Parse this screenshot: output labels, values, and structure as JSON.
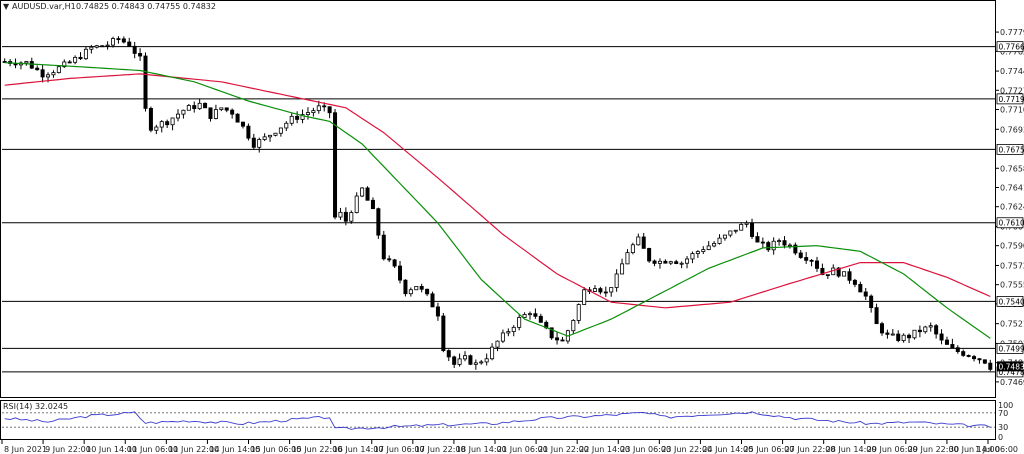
{
  "header": {
    "symbol": "AUDUSD.var,H1",
    "ohlc": "0.74825 0.74843 0.74755 0.74832"
  },
  "rsi_header": {
    "label": "RSI(14)",
    "value": "32.0245"
  },
  "chart_data": [
    {
      "type": "candlestick",
      "ylim": [
        0.7457,
        0.7795
      ],
      "y_ticks": [
        "0.77790",
        "0.77620",
        "0.77445",
        "0.77275",
        "0.77105",
        "0.76930",
        "0.76585",
        "0.76415",
        "0.76245",
        "0.76070",
        "0.75900",
        "0.75725",
        "0.75555",
        "0.75385",
        "0.75210",
        "0.75035",
        "0.74865",
        "0.74695"
      ],
      "x_ticks": [
        "8 Jun 2021",
        "9 Jun 22:00",
        "10 Jun 14:00",
        "11 Jun 06:00",
        "11 Jun 22:00",
        "14 Jun 14:00",
        "15 Jun 06:00",
        "15 Jun 22:00",
        "16 Jun 14:00",
        "17 Jun 06:00",
        "17 Jun 22:00",
        "18 Jun 14:00",
        "21 Jun 06:00",
        "21 Jun 22:00",
        "22 Jun 14:00",
        "23 Jun 06:00",
        "23 Jun 22:00",
        "24 Jun 14:00",
        "25 Jun 06:00",
        "27 Jun 22:00",
        "28 Jun 14:00",
        "29 Jun 06:00",
        "29 Jun 22:00",
        "30 Jun 14:00",
        "1 Jul 06:00"
      ],
      "horizontal_levels": [
        "0.77661",
        "0.77199",
        "0.76752",
        "0.76103",
        "0.75407",
        "0.74991",
        "0.74783"
      ],
      "last_price": "0.74832",
      "close_path": [
        [
          0,
          0.7753
        ],
        [
          4,
          0.7752
        ],
        [
          7,
          0.7742
        ],
        [
          9,
          0.7745
        ],
        [
          12,
          0.7752
        ],
        [
          14,
          0.7758
        ],
        [
          16,
          0.7765
        ],
        [
          19,
          0.7768
        ],
        [
          21,
          0.7773
        ],
        [
          23,
          0.7768
        ],
        [
          25,
          0.7755
        ],
        [
          26,
          0.771
        ],
        [
          27,
          0.7695
        ],
        [
          30,
          0.77
        ],
        [
          33,
          0.771
        ],
        [
          36,
          0.7715
        ],
        [
          38,
          0.7705
        ],
        [
          40,
          0.7712
        ],
        [
          42,
          0.7708
        ],
        [
          44,
          0.7695
        ],
        [
          46,
          0.768
        ],
        [
          48,
          0.7685
        ],
        [
          50,
          0.7692
        ],
        [
          53,
          0.7702
        ],
        [
          56,
          0.7708
        ],
        [
          58,
          0.7712
        ],
        [
          60,
          0.7708
        ],
        [
          61,
          0.7615
        ],
        [
          62,
          0.7618
        ],
        [
          63,
          0.7612
        ],
        [
          64,
          0.7622
        ],
        [
          66,
          0.764
        ],
        [
          68,
          0.762
        ],
        [
          70,
          0.758
        ],
        [
          72,
          0.757
        ],
        [
          74,
          0.755
        ],
        [
          76,
          0.7555
        ],
        [
          78,
          0.7545
        ],
        [
          80,
          0.753
        ],
        [
          81,
          0.75
        ],
        [
          83,
          0.7485
        ],
        [
          85,
          0.749
        ],
        [
          87,
          0.7485
        ],
        [
          89,
          0.7492
        ],
        [
          91,
          0.7505
        ],
        [
          93,
          0.7515
        ],
        [
          95,
          0.7525
        ],
        [
          97,
          0.7532
        ],
        [
          99,
          0.752
        ],
        [
          101,
          0.751
        ],
        [
          103,
          0.7505
        ],
        [
          105,
          0.7525
        ],
        [
          107,
          0.755
        ],
        [
          109,
          0.7555
        ],
        [
          111,
          0.7548
        ],
        [
          113,
          0.7562
        ],
        [
          115,
          0.7585
        ],
        [
          117,
          0.7595
        ],
        [
          119,
          0.7578
        ],
        [
          121,
          0.7576
        ],
        [
          123,
          0.7578
        ],
        [
          125,
          0.7575
        ],
        [
          127,
          0.7582
        ],
        [
          129,
          0.7588
        ],
        [
          131,
          0.7592
        ],
        [
          133,
          0.7598
        ],
        [
          135,
          0.7605
        ],
        [
          137,
          0.761
        ],
        [
          139,
          0.7592
        ],
        [
          141,
          0.7588
        ],
        [
          143,
          0.7595
        ],
        [
          145,
          0.759
        ],
        [
          147,
          0.7582
        ],
        [
          149,
          0.7578
        ],
        [
          151,
          0.7565
        ],
        [
          153,
          0.7568
        ],
        [
          155,
          0.7564
        ],
        [
          157,
          0.7558
        ],
        [
          159,
          0.7545
        ],
        [
          161,
          0.752
        ],
        [
          163,
          0.751
        ],
        [
          165,
          0.7508
        ],
        [
          167,
          0.751
        ],
        [
          169,
          0.7515
        ],
        [
          171,
          0.7518
        ],
        [
          173,
          0.7505
        ],
        [
          175,
          0.7498
        ],
        [
          177,
          0.7495
        ],
        [
          179,
          0.7492
        ],
        [
          181,
          0.7488
        ],
        [
          182,
          0.7483
        ]
      ],
      "ma_fast": [
        [
          0,
          0.7752
        ],
        [
          15,
          0.7748
        ],
        [
          25,
          0.7745
        ],
        [
          35,
          0.7735
        ],
        [
          45,
          0.7718
        ],
        [
          55,
          0.7705
        ],
        [
          60,
          0.77
        ],
        [
          66,
          0.768
        ],
        [
          72,
          0.765
        ],
        [
          80,
          0.761
        ],
        [
          88,
          0.756
        ],
        [
          96,
          0.7525
        ],
        [
          104,
          0.751
        ],
        [
          112,
          0.7525
        ],
        [
          120,
          0.7545
        ],
        [
          130,
          0.757
        ],
        [
          140,
          0.7588
        ],
        [
          150,
          0.759
        ],
        [
          158,
          0.7585
        ],
        [
          166,
          0.7565
        ],
        [
          174,
          0.7535
        ],
        [
          182,
          0.7508
        ]
      ],
      "ma_slow": [
        [
          0,
          0.7732
        ],
        [
          12,
          0.7738
        ],
        [
          25,
          0.7742
        ],
        [
          40,
          0.7735
        ],
        [
          55,
          0.772
        ],
        [
          63,
          0.7712
        ],
        [
          70,
          0.769
        ],
        [
          80,
          0.765
        ],
        [
          92,
          0.76
        ],
        [
          102,
          0.7565
        ],
        [
          112,
          0.754
        ],
        [
          122,
          0.7535
        ],
        [
          134,
          0.754
        ],
        [
          146,
          0.7558
        ],
        [
          158,
          0.7575
        ],
        [
          166,
          0.7575
        ],
        [
          174,
          0.7562
        ],
        [
          182,
          0.7545
        ]
      ]
    },
    {
      "type": "line",
      "title": "RSI(14) 32.0245",
      "ylim": [
        0,
        100
      ],
      "y_ticks": [
        "100",
        "70",
        "30",
        "0"
      ],
      "levels": [
        70,
        30
      ],
      "values": [
        [
          0,
          55
        ],
        [
          8,
          45
        ],
        [
          16,
          62
        ],
        [
          24,
          70
        ],
        [
          26,
          42
        ],
        [
          34,
          48
        ],
        [
          44,
          40
        ],
        [
          54,
          52
        ],
        [
          60,
          58
        ],
        [
          61,
          25
        ],
        [
          70,
          30
        ],
        [
          80,
          36
        ],
        [
          90,
          40
        ],
        [
          100,
          55
        ],
        [
          110,
          62
        ],
        [
          118,
          70
        ],
        [
          122,
          58
        ],
        [
          130,
          66
        ],
        [
          138,
          72
        ],
        [
          146,
          55
        ],
        [
          154,
          46
        ],
        [
          160,
          40
        ],
        [
          168,
          44
        ],
        [
          174,
          38
        ],
        [
          182,
          32
        ]
      ]
    }
  ],
  "colors": {
    "bull_candle": "#000000",
    "bear_candle": "#000000",
    "ma_fast": "#0a8f0a",
    "ma_slow": "#dc143c",
    "rsi_line": "#3c3ccd",
    "level_line": "#000000",
    "last_price_tag": "#000000"
  }
}
